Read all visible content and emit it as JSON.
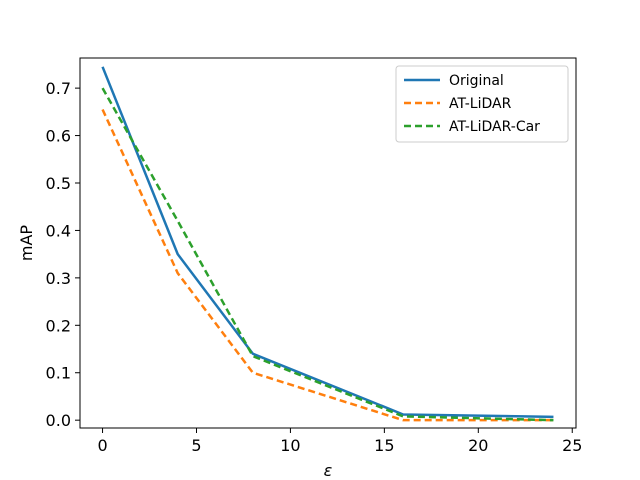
{
  "chart_data": {
    "type": "line",
    "title": "",
    "xlabel": "ε",
    "ylabel": "mAP",
    "xlim": [
      -1.2,
      25.2
    ],
    "ylim": [
      -0.0165,
      0.7635
    ],
    "xticks": [
      0,
      5,
      10,
      15,
      20,
      25
    ],
    "yticks": [
      0.0,
      0.1,
      0.2,
      0.3,
      0.4,
      0.5,
      0.6,
      0.7
    ],
    "xtick_labels": [
      "0",
      "5",
      "10",
      "15",
      "20",
      "25"
    ],
    "ytick_labels": [
      "0.0",
      "0.1",
      "0.2",
      "0.3",
      "0.4",
      "0.5",
      "0.6",
      "0.7"
    ],
    "grid": false,
    "legend_position": "top-right",
    "x": [
      0,
      4,
      8,
      16,
      24
    ],
    "series": [
      {
        "name": "Original",
        "values": [
          0.745,
          0.35,
          0.14,
          0.012,
          0.007
        ],
        "color": "#1f77b4",
        "style": "solid"
      },
      {
        "name": "AT-LiDAR",
        "values": [
          0.655,
          0.31,
          0.1,
          0.0,
          0.0
        ],
        "color": "#ff7f0e",
        "style": "dashed"
      },
      {
        "name": "AT-LiDAR-Car",
        "values": [
          0.7,
          0.42,
          0.135,
          0.008,
          0.0
        ],
        "color": "#2ca02c",
        "style": "dashed"
      }
    ]
  }
}
